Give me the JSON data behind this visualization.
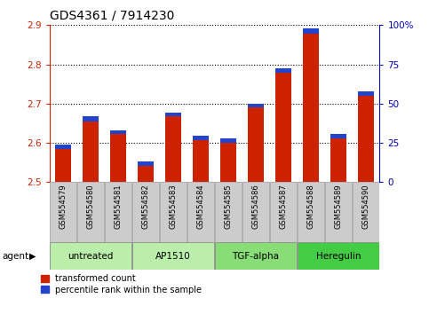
{
  "title": "GDS4361 / 7914230",
  "samples": [
    "GSM554579",
    "GSM554580",
    "GSM554581",
    "GSM554582",
    "GSM554583",
    "GSM554584",
    "GSM554585",
    "GSM554586",
    "GSM554587",
    "GSM554588",
    "GSM554589",
    "GSM554590"
  ],
  "red_values": [
    2.585,
    2.655,
    2.622,
    2.542,
    2.668,
    2.607,
    2.6,
    2.69,
    2.778,
    2.878,
    2.612,
    2.72
  ],
  "blue_values": [
    0.01,
    0.012,
    0.01,
    0.01,
    0.01,
    0.011,
    0.011,
    0.01,
    0.012,
    0.013,
    0.01,
    0.012
  ],
  "ymin": 2.5,
  "ymax": 2.9,
  "yticks_left": [
    2.5,
    2.6,
    2.7,
    2.8,
    2.9
  ],
  "ytick_right_labels": [
    "0",
    "25",
    "50",
    "75",
    "100%"
  ],
  "bar_color_red": "#cc2200",
  "bar_color_blue": "#2244cc",
  "agent_groups": [
    {
      "label": "untreated",
      "start": 0,
      "end": 2,
      "color": "#bbeeaa"
    },
    {
      "label": "AP1510",
      "start": 3,
      "end": 5,
      "color": "#bbeeaa"
    },
    {
      "label": "TGF-alpha",
      "start": 6,
      "end": 8,
      "color": "#88dd77"
    },
    {
      "label": "Heregulin",
      "start": 9,
      "end": 11,
      "color": "#44cc44"
    }
  ],
  "agent_label": "agent",
  "legend_red": "transformed count",
  "legend_blue": "percentile rank within the sample",
  "title_fontsize": 10,
  "tick_fontsize": 7.5,
  "bar_width": 0.6
}
